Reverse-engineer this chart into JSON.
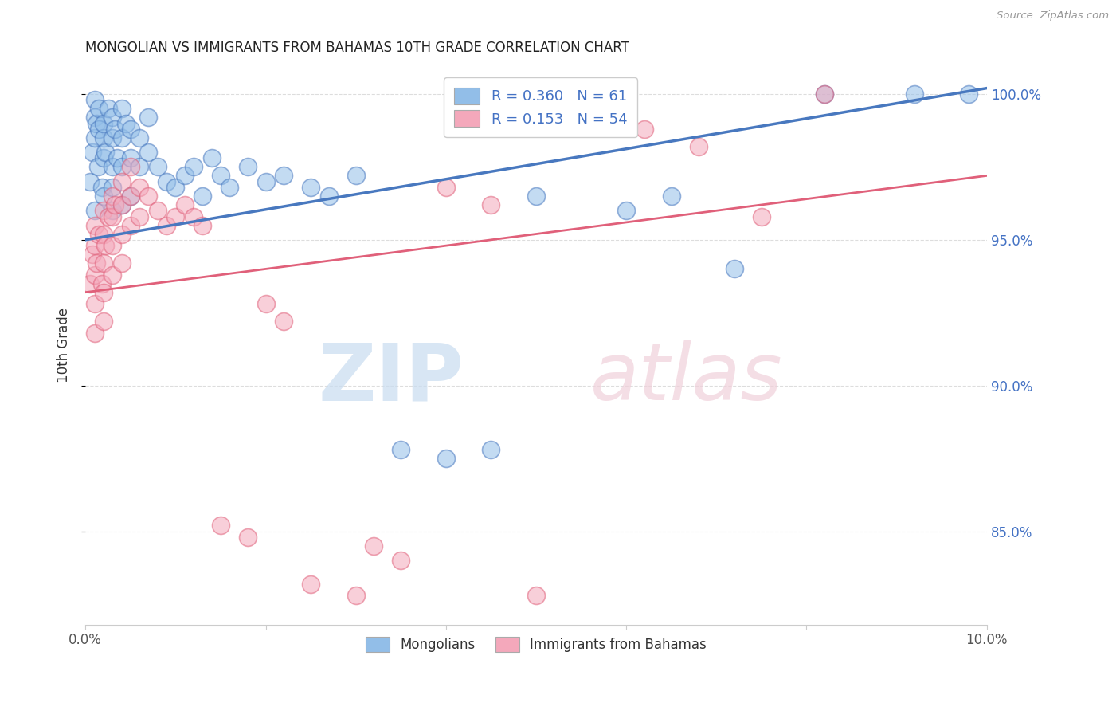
{
  "title": "MONGOLIAN VS IMMIGRANTS FROM BAHAMAS 10TH GRADE CORRELATION CHART",
  "source": "Source: ZipAtlas.com",
  "ylabel": "10th Grade",
  "xlim": [
    0.0,
    0.1
  ],
  "ylim": [
    0.818,
    1.01
  ],
  "blue_R": 0.36,
  "blue_N": 61,
  "pink_R": 0.153,
  "pink_N": 54,
  "blue_color": "#92BEE8",
  "pink_color": "#F4A8BB",
  "blue_line_color": "#4878BF",
  "pink_line_color": "#E0607A",
  "legend_label_blue": "Mongolians",
  "legend_label_pink": "Immigrants from Bahamas",
  "background_color": "#FFFFFF",
  "grid_color": "#DDDDDD",
  "blue_x": [
    0.0005,
    0.0008,
    0.001,
    0.001,
    0.001,
    0.001,
    0.0012,
    0.0014,
    0.0015,
    0.0015,
    0.0018,
    0.002,
    0.002,
    0.002,
    0.002,
    0.0022,
    0.0025,
    0.003,
    0.003,
    0.003,
    0.003,
    0.003,
    0.0032,
    0.0035,
    0.004,
    0.004,
    0.004,
    0.004,
    0.0045,
    0.005,
    0.005,
    0.005,
    0.006,
    0.006,
    0.007,
    0.007,
    0.008,
    0.009,
    0.01,
    0.011,
    0.012,
    0.013,
    0.014,
    0.015,
    0.016,
    0.018,
    0.02,
    0.022,
    0.025,
    0.027,
    0.03,
    0.035,
    0.04,
    0.045,
    0.05,
    0.06,
    0.065,
    0.072,
    0.082,
    0.092,
    0.098
  ],
  "blue_y": [
    0.97,
    0.98,
    0.998,
    0.992,
    0.985,
    0.96,
    0.99,
    0.975,
    0.988,
    0.995,
    0.968,
    0.985,
    0.978,
    0.99,
    0.965,
    0.98,
    0.995,
    0.992,
    0.985,
    0.975,
    0.968,
    0.96,
    0.988,
    0.978,
    0.995,
    0.985,
    0.975,
    0.962,
    0.99,
    0.988,
    0.978,
    0.965,
    0.985,
    0.975,
    0.992,
    0.98,
    0.975,
    0.97,
    0.968,
    0.972,
    0.975,
    0.965,
    0.978,
    0.972,
    0.968,
    0.975,
    0.97,
    0.972,
    0.968,
    0.965,
    0.972,
    0.878,
    0.875,
    0.878,
    0.965,
    0.96,
    0.965,
    0.94,
    1.0,
    1.0,
    1.0
  ],
  "pink_x": [
    0.0005,
    0.0008,
    0.001,
    0.001,
    0.001,
    0.001,
    0.001,
    0.0012,
    0.0015,
    0.0018,
    0.002,
    0.002,
    0.002,
    0.002,
    0.002,
    0.0022,
    0.0025,
    0.003,
    0.003,
    0.003,
    0.003,
    0.0032,
    0.004,
    0.004,
    0.004,
    0.004,
    0.005,
    0.005,
    0.005,
    0.006,
    0.006,
    0.007,
    0.008,
    0.009,
    0.01,
    0.011,
    0.012,
    0.013,
    0.015,
    0.018,
    0.02,
    0.022,
    0.025,
    0.03,
    0.032,
    0.035,
    0.04,
    0.045,
    0.05,
    0.058,
    0.062,
    0.068,
    0.075,
    0.082
  ],
  "pink_y": [
    0.935,
    0.945,
    0.955,
    0.948,
    0.938,
    0.928,
    0.918,
    0.942,
    0.952,
    0.935,
    0.96,
    0.952,
    0.942,
    0.932,
    0.922,
    0.948,
    0.958,
    0.965,
    0.958,
    0.948,
    0.938,
    0.962,
    0.97,
    0.962,
    0.952,
    0.942,
    0.975,
    0.965,
    0.955,
    0.968,
    0.958,
    0.965,
    0.96,
    0.955,
    0.958,
    0.962,
    0.958,
    0.955,
    0.852,
    0.848,
    0.928,
    0.922,
    0.832,
    0.828,
    0.845,
    0.84,
    0.968,
    0.962,
    0.828,
    0.995,
    0.988,
    0.982,
    0.958,
    1.0
  ],
  "blue_trendline_x": [
    0.0,
    0.1
  ],
  "blue_trendline_y": [
    0.95,
    1.002
  ],
  "pink_trendline_x": [
    0.0,
    0.1
  ],
  "pink_trendline_y": [
    0.932,
    0.972
  ]
}
